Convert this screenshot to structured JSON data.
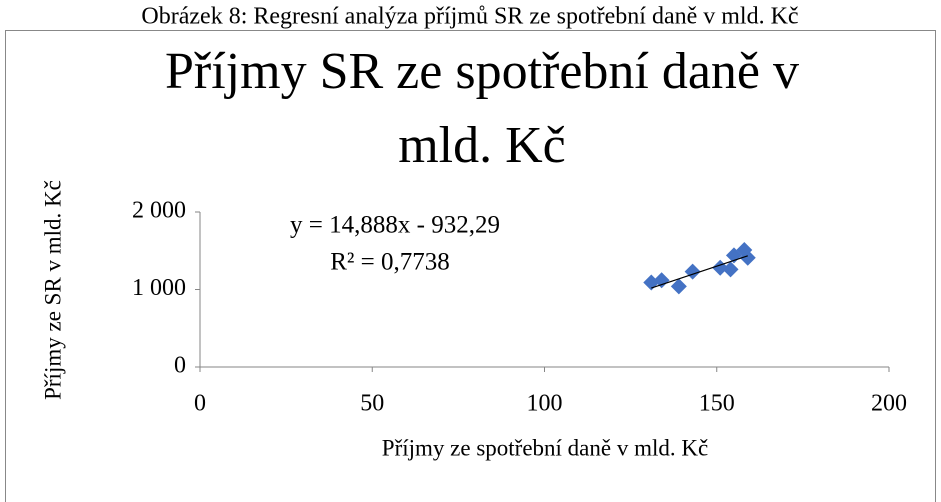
{
  "caption": "Obrázek 8: Regresní analýza příjmů SR ze spotřební daně v mld. Kč",
  "chart_data": {
    "type": "scatter",
    "title": [
      "Příjmy SR ze spotřební daně v",
      "mld. Kč"
    ],
    "x_label": "Příjmy ze spotřební daně v mld. Kč",
    "y_label": "Příjmy ze SR v mld. Kč",
    "annotations": [
      "y = 14,888x - 932,29",
      "R² = 0,7738"
    ],
    "trendline": {
      "slope": 14.888,
      "intercept": -932.29
    },
    "series": [
      {
        "color": "#4472c4",
        "x": [
          131,
          134,
          139,
          143,
          151,
          154,
          155,
          158,
          159
        ],
        "values": [
          1090,
          1120,
          1040,
          1230,
          1280,
          1260,
          1440,
          1510,
          1410
        ]
      }
    ],
    "xlim": [
      0,
      200
    ],
    "xticks": [
      0,
      50,
      100,
      150,
      200
    ],
    "ylim": [
      0,
      2000
    ],
    "yticks": [
      0,
      {
        "value": 1000,
        "label": "1 000"
      },
      {
        "value": 2000,
        "label": "2 000"
      }
    ],
    "grid": false
  }
}
